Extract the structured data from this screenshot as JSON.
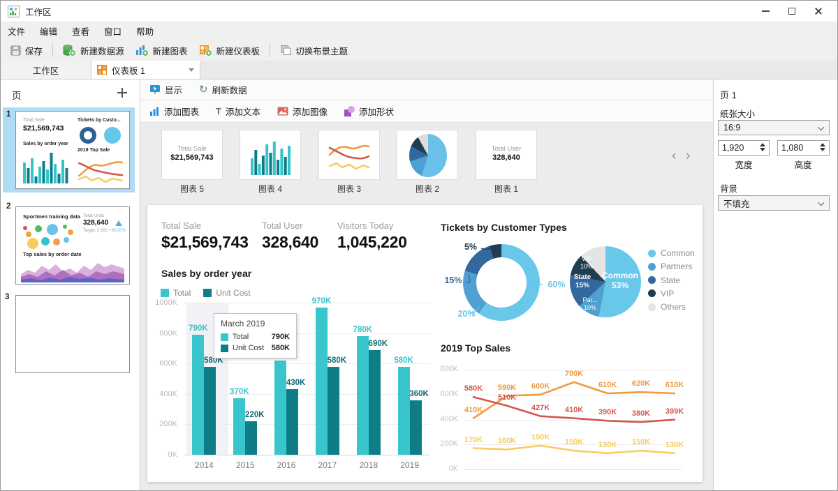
{
  "window": {
    "title": "工作区"
  },
  "menu": {
    "items": [
      "文件",
      "编辑",
      "查看",
      "窗口",
      "帮助"
    ]
  },
  "toolbar": {
    "save": "保存",
    "new_datasource": "新建数据源",
    "new_chart": "新建图表",
    "new_dashboard": "新建仪表板",
    "switch_theme": "切换布景主题"
  },
  "tabs": {
    "workspace": "工作区",
    "dashboard": "仪表板 1"
  },
  "pages_panel": {
    "title": "页",
    "pages": [
      {
        "number": "1",
        "kpi_label": "Total Sale",
        "kpi_value": "$21,569,743",
        "pie_title": "Tickets by Custo...",
        "bar_title": "Sales by order year",
        "line_title": "2019 Top Sale"
      },
      {
        "number": "2",
        "bubble_title": "Sportmen training data",
        "kpi_label": "Total Units",
        "kpi_value": "328,640",
        "target": "Target: 3,000",
        "delta": "+95.00%",
        "area_title": "Top sales by order date"
      },
      {
        "number": "3"
      }
    ]
  },
  "canvas_toolbar": {
    "show": "显示",
    "refresh": "刷新数据"
  },
  "insert_toolbar": {
    "add_chart": "添加图表",
    "add_text": "添加文本",
    "add_image": "添加图像",
    "add_shape": "添加形状"
  },
  "carousel": {
    "items": [
      {
        "label": "图表 5",
        "kpi_label": "Total Sale",
        "kpi_value": "$21,569,743"
      },
      {
        "label": "图表 4"
      },
      {
        "label": "图表 3"
      },
      {
        "label": "图表 2"
      },
      {
        "label": "图表 1",
        "kpi_label": "Total User",
        "kpi_value": "328,640"
      }
    ]
  },
  "dashboard": {
    "kpis": [
      {
        "label": "Total Sale",
        "value": "$21,569,743"
      },
      {
        "label": "Total User",
        "value": "328,640"
      },
      {
        "label": "Visitors Today",
        "value": "1,045,220"
      }
    ],
    "bar_chart_title": "Sales by order year",
    "tickets_title": "Tickets by Customer Types",
    "line_chart_title": "2019 Top Sales",
    "tooltip": {
      "title": "March 2019",
      "rows": [
        {
          "name": "Total",
          "value": "790K"
        },
        {
          "name": "Unit Cost",
          "value": "580K"
        }
      ]
    }
  },
  "inspector": {
    "title": "页 1",
    "paper_size_label": "纸张大小",
    "paper_size_value": "16:9",
    "width_value": "1,920",
    "width_label": "宽度",
    "height_value": "1,080",
    "height_label": "高度",
    "background_label": "背景",
    "background_value": "不填充"
  },
  "chart_data": [
    {
      "type": "bar",
      "title": "Sales by order year",
      "categories": [
        "2014",
        "2015",
        "2016",
        "2017",
        "2018",
        "2019"
      ],
      "series": [
        {
          "name": "Total",
          "color": "#38c6cc",
          "label_color": "#35c3c9",
          "values": [
            790,
            370,
            620,
            970,
            780,
            580
          ],
          "labels": [
            "790K",
            "370K",
            "620K",
            "970K",
            "780K",
            "580K"
          ]
        },
        {
          "name": "Unit Cost",
          "color": "#0e7d88",
          "label_color": "#0d6b75",
          "values": [
            580,
            220,
            430,
            580,
            690,
            360
          ],
          "labels": [
            "580K",
            "220K",
            "430K",
            "580K",
            "690K",
            "360K"
          ]
        }
      ],
      "yticks": [
        "0K",
        "200K",
        "400K",
        "600K",
        "800K",
        "1000K"
      ],
      "ylim": [
        0,
        1000
      ],
      "grid": true,
      "legend_position": "top-left"
    },
    {
      "type": "pie",
      "variant": "donut",
      "title": "Tickets by Customer Types",
      "slices": [
        {
          "label": "60%",
          "value": 60,
          "color": "#69c7ea"
        },
        {
          "label": "20%",
          "value": 20,
          "color": "#4f9fd1"
        },
        {
          "label": "15%",
          "value": 15,
          "color": "#33689f"
        },
        {
          "label": "5%",
          "value": 5,
          "color": "#1f3e52"
        }
      ]
    },
    {
      "type": "pie",
      "title": "Tickets by Customer Types",
      "legend": [
        "Common",
        "Partners",
        "State",
        "VIP",
        "Others"
      ],
      "legend_position": "right",
      "slices": [
        {
          "label": "Common\n53%",
          "value": 53,
          "color": "#69c7ea"
        },
        {
          "label": "Par...\n10%",
          "value": 10,
          "color": "#4f9fd1"
        },
        {
          "label": "State\n15%",
          "value": 15,
          "color": "#33689f"
        },
        {
          "label": "VIP\n10%",
          "value": 10,
          "color": "#1f3e52"
        },
        {
          "label": "",
          "value": 12,
          "color": "#e4e4e4"
        }
      ]
    },
    {
      "type": "line",
      "title": "2019 Top Sales",
      "yticks": [
        "0K",
        "200K",
        "400K",
        "600K",
        "800K"
      ],
      "ylim": [
        0,
        800
      ],
      "grid": true,
      "series": [
        {
          "name": "series-orange",
          "color": "#f09a3c",
          "values": [
            410,
            590,
            600,
            700,
            610,
            620,
            610
          ],
          "labels": [
            "410K",
            "590K",
            "600K",
            "700K",
            "610K",
            "620K",
            "610K"
          ]
        },
        {
          "name": "series-red",
          "color": "#d4574e",
          "values": [
            580,
            510,
            427,
            410,
            390,
            380,
            399
          ],
          "labels": [
            "580K",
            "510K",
            "427K",
            "410K",
            "390K",
            "380K",
            "399K"
          ]
        },
        {
          "name": "series-yellow",
          "color": "#f6cd5f",
          "values": [
            170,
            160,
            190,
            150,
            130,
            150,
            130
          ],
          "labels": [
            "170K",
            "160K",
            "190K",
            "150K",
            "130K",
            "150K",
            "130K"
          ]
        }
      ]
    }
  ]
}
